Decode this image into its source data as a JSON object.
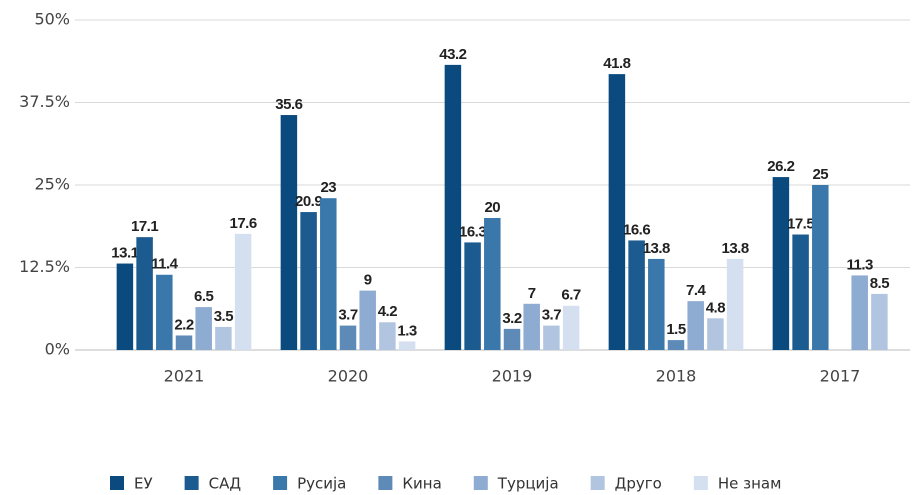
{
  "chart_data": {
    "type": "bar",
    "categories": [
      "2021",
      "2020",
      "2019",
      "2018",
      "2017"
    ],
    "series": [
      {
        "name": "ЕУ",
        "color": "#0b4a7e",
        "values": [
          13.1,
          35.6,
          43.2,
          41.8,
          26.2
        ]
      },
      {
        "name": "САД",
        "color": "#1c5b90",
        "values": [
          17.1,
          20.9,
          16.3,
          16.6,
          17.5
        ]
      },
      {
        "name": "Русија",
        "color": "#3a78ab",
        "values": [
          11.4,
          23,
          20,
          13.8,
          25
        ]
      },
      {
        "name": "Кина",
        "color": "#5d8ab6",
        "values": [
          2.2,
          3.7,
          3.2,
          1.5,
          null
        ]
      },
      {
        "name": "Турција",
        "color": "#8eabd1",
        "values": [
          6.5,
          9,
          7,
          7.4,
          11.3
        ]
      },
      {
        "name": "Друго",
        "color": "#b2c5e0",
        "values": [
          3.5,
          4.2,
          3.7,
          4.8,
          8.5
        ]
      },
      {
        "name": "Не знам",
        "color": "#d4e0ef",
        "values": [
          17.6,
          1.3,
          6.7,
          13.8,
          null
        ]
      }
    ],
    "ylim": [
      0,
      50
    ],
    "yticks": [
      {
        "value": 0,
        "label": "0%"
      },
      {
        "value": 12.5,
        "label": "12.5%"
      },
      {
        "value": 25,
        "label": "25%"
      },
      {
        "value": 37.5,
        "label": "37.5%"
      },
      {
        "value": 50,
        "label": "50%"
      }
    ],
    "grid": true,
    "legend": "bottom"
  }
}
